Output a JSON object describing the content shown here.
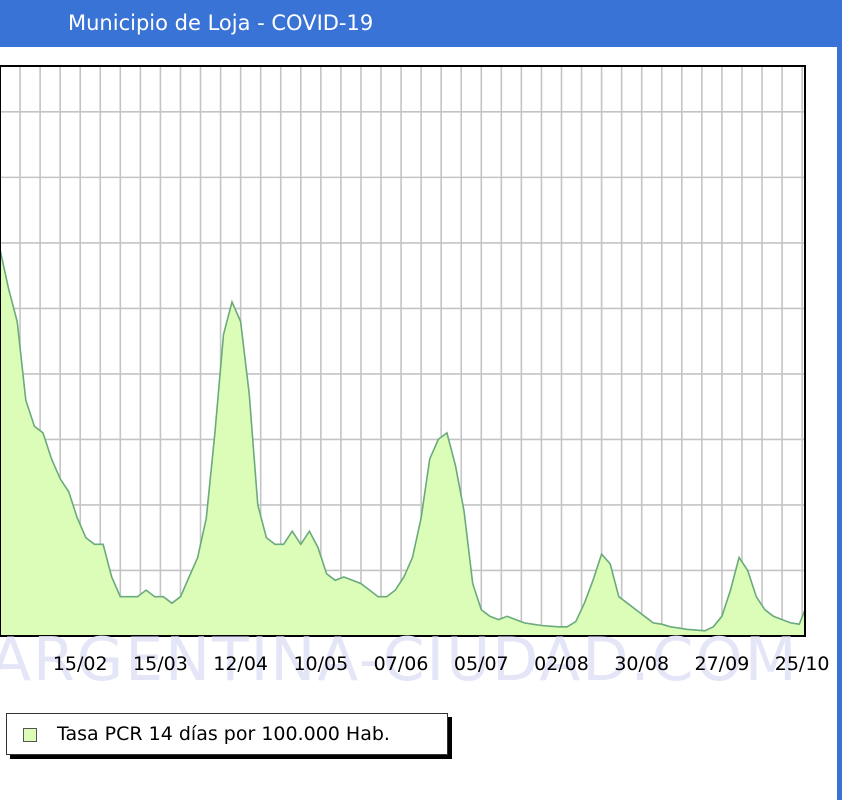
{
  "window": {
    "title": "Municipio de Loja - COVID-19"
  },
  "watermark": "ARGENTINA-CIUDAD.COM",
  "colors": {
    "title_bar": "#3a73d6",
    "area_fill": "#dcfdb8",
    "area_line": "#6aaa7c",
    "grid": "#c4c4c4"
  },
  "chart_data": {
    "type": "area",
    "title": "",
    "xlabel": "",
    "ylabel": "",
    "x_ticks": [
      "15/02",
      "15/03",
      "12/04",
      "10/05",
      "07/06",
      "05/07",
      "02/08",
      "30/08",
      "27/09",
      "25/10"
    ],
    "x_range": [
      "18/01",
      "26/10"
    ],
    "ylim": [
      0,
      870
    ],
    "grid": true,
    "legend_position": "bottom-left",
    "series": [
      {
        "name": "Tasa PCR 14 días por 100.000 Hab.",
        "x_day": [
          0,
          3,
          6,
          9,
          12,
          15,
          18,
          21,
          24,
          27,
          30,
          33,
          36,
          39,
          42,
          45,
          48,
          51,
          54,
          57,
          60,
          63,
          66,
          69,
          72,
          75,
          78,
          81,
          84,
          87,
          90,
          93,
          96,
          99,
          102,
          105,
          108,
          111,
          114,
          117,
          120,
          123,
          126,
          129,
          132,
          135,
          138,
          141,
          144,
          147,
          150,
          153,
          156,
          159,
          162,
          165,
          168,
          171,
          174,
          177,
          180,
          183,
          186,
          189,
          192,
          195,
          198,
          201,
          204,
          207,
          210,
          213,
          216,
          219,
          222,
          225,
          228,
          231,
          234,
          237,
          240,
          243,
          246,
          249,
          252,
          255,
          258,
          261,
          264,
          267,
          270,
          273,
          276,
          279,
          281
        ],
        "values": [
          590,
          530,
          480,
          360,
          320,
          310,
          270,
          240,
          220,
          180,
          150,
          140,
          140,
          90,
          60,
          60,
          60,
          70,
          60,
          60,
          50,
          60,
          90,
          120,
          180,
          310,
          460,
          510,
          480,
          370,
          200,
          150,
          140,
          140,
          160,
          140,
          160,
          135,
          95,
          85,
          90,
          85,
          80,
          70,
          60,
          60,
          70,
          90,
          120,
          180,
          270,
          300,
          310,
          260,
          190,
          80,
          40,
          30,
          25,
          30,
          25,
          20,
          18,
          16,
          15,
          14,
          14,
          22,
          50,
          85,
          125,
          110,
          60,
          50,
          40,
          30,
          20,
          18,
          14,
          12,
          10,
          9,
          8,
          14,
          30,
          70,
          120,
          100,
          60,
          40,
          30,
          25,
          20,
          18,
          40
        ]
      }
    ]
  }
}
